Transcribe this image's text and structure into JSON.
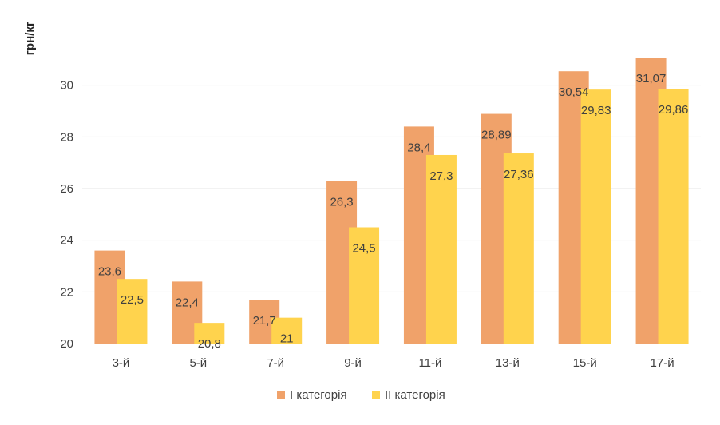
{
  "chart_data": {
    "type": "bar",
    "ylabel": "грн/кг",
    "xlabel": "",
    "ylim": [
      20,
      32
    ],
    "yticks": [
      20,
      22,
      24,
      26,
      28,
      30
    ],
    "categories": [
      "3-й",
      "5-й",
      "7-й",
      "9-й",
      "11-й",
      "13-й",
      "15-й",
      "17-й"
    ],
    "series": [
      {
        "name": "І категорія",
        "color": "#F0A26A",
        "values": [
          23.6,
          22.4,
          21.7,
          26.3,
          28.4,
          28.89,
          30.54,
          31.07
        ],
        "labels": [
          "23,6",
          "22,4",
          "21,7",
          "26,3",
          "28,4",
          "28,89",
          "30,54",
          "31,07"
        ]
      },
      {
        "name": "ІІ категорія",
        "color": "#FFD34D",
        "values": [
          22.5,
          20.8,
          21,
          24.5,
          27.3,
          27.36,
          29.83,
          29.86
        ],
        "labels": [
          "22,5",
          "20,8",
          "21",
          "24,5",
          "27,3",
          "27,36",
          "29,83",
          "29,86"
        ]
      }
    ],
    "grid": true,
    "legend_position": "bottom"
  }
}
